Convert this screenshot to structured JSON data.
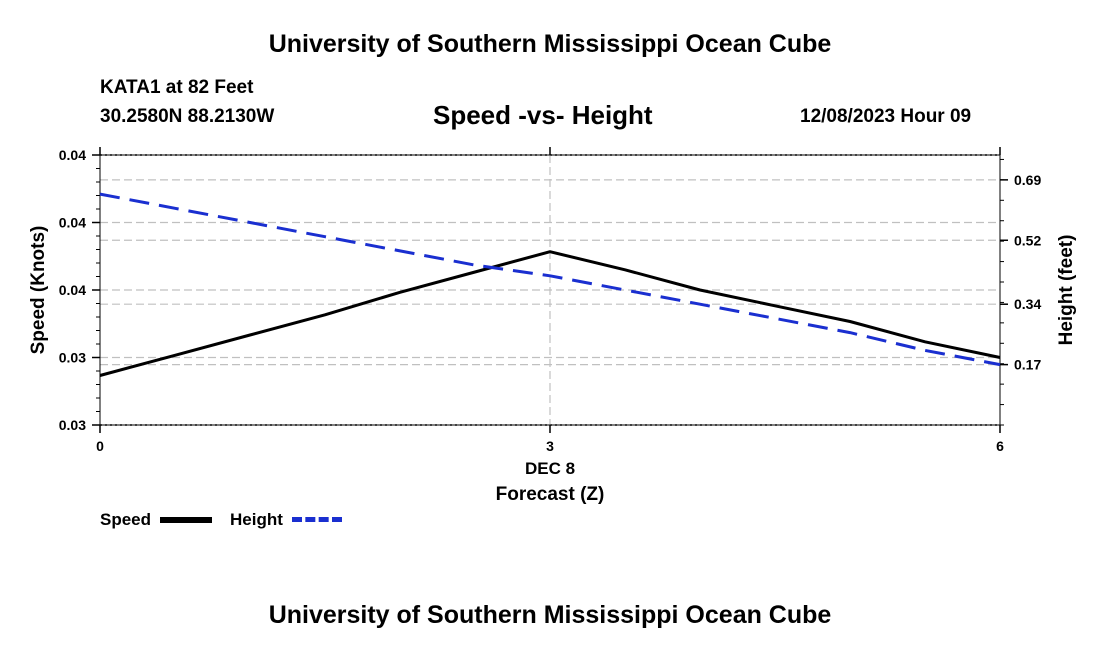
{
  "header": {
    "title": "University of Southern Mississippi Ocean Cube",
    "station": "KATA1 at 82 Feet",
    "coords": "30.2580N  88.2130W",
    "subtitle": "Speed -vs- Height",
    "datetime": "12/08/2023 Hour 09"
  },
  "footer": {
    "title": "University of Southern Mississippi Ocean Cube"
  },
  "legend": {
    "speed_label": "Speed",
    "height_label": "Height"
  },
  "colors": {
    "speed": "#000000",
    "height": "#1a2fd0",
    "grid": "#c0c0c0"
  },
  "chart_data": {
    "type": "line",
    "title": "Speed -vs- Height",
    "xlabel": "Forecast (Z)",
    "xlabel_date": "DEC 8",
    "ylabel_left": "Speed (Knots)",
    "ylabel_right": "Height (feet)",
    "x": [
      0,
      0.5,
      1,
      1.5,
      2,
      2.5,
      3,
      3.5,
      4,
      4.5,
      5,
      5.5,
      6
    ],
    "x_ticks": [
      "0",
      "3",
      "6"
    ],
    "xlim": [
      0,
      6
    ],
    "left_ticks": [
      "0.03",
      "0.03",
      "0.04",
      "0.04",
      "0.04"
    ],
    "left_ylim": [
      0.029,
      0.041
    ],
    "right_ticks": [
      "0.17",
      "0.34",
      "0.52",
      "0.69"
    ],
    "right_tick_values": [
      0.17,
      0.34,
      0.52,
      0.69
    ],
    "right_ylim": [
      0.0,
      0.76
    ],
    "series": [
      {
        "name": "Speed",
        "axis": "left",
        "style": "solid",
        "values": [
          0.0312,
          0.0321,
          0.033,
          0.0339,
          0.0349,
          0.0358,
          0.0367,
          0.0359,
          0.035,
          0.0343,
          0.0336,
          0.0327,
          0.032
        ]
      },
      {
        "name": "Height",
        "axis": "right",
        "style": "dashed",
        "values": [
          0.65,
          0.61,
          0.57,
          0.53,
          0.49,
          0.45,
          0.42,
          0.38,
          0.34,
          0.3,
          0.26,
          0.21,
          0.17
        ]
      }
    ],
    "grid": true,
    "legend_position": "bottom-left"
  }
}
